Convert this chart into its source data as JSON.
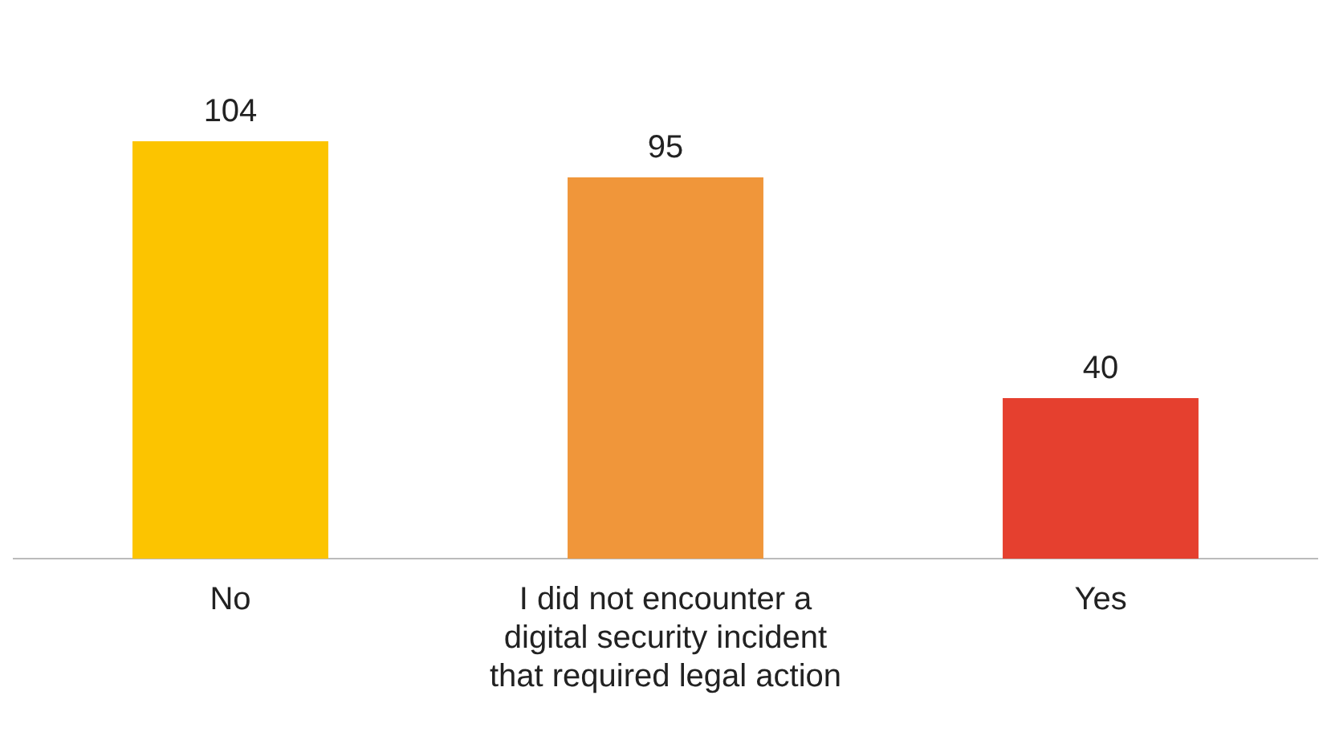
{
  "chart_data": {
    "type": "bar",
    "categories": [
      "No",
      "I did not encounter a digital security incident that required legal action",
      "Yes"
    ],
    "values": [
      104,
      95,
      40
    ],
    "colors": [
      "#fcc400",
      "#f0963a",
      "#e5402f"
    ],
    "data_labels": true,
    "grid": false,
    "legend": false
  }
}
